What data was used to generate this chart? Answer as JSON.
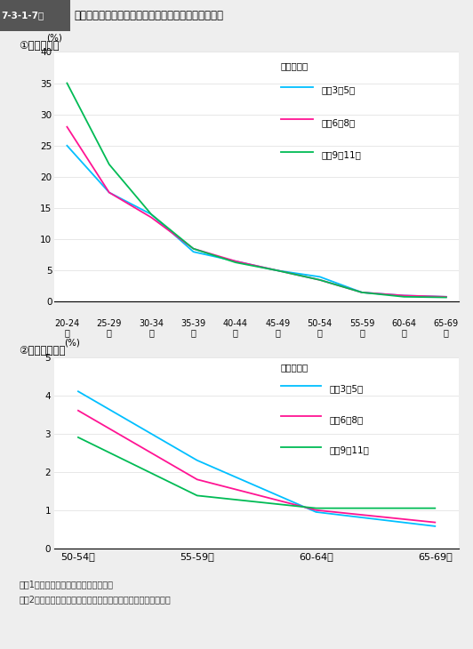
{
  "title_label": "7-3-1-7図",
  "title_text": "調査対象者の出生年別・１犯目の年齢層別人員の比率",
  "subtitle1": "①　全年齢層",
  "subtitle2": "②　５０歳以上",
  "legend_title": "（出生年）",
  "legend_labels": [
    "昭和3～5年",
    "昭和6～8年",
    "昭和9～11年"
  ],
  "colors": [
    "#00BFFF",
    "#FF1493",
    "#00BB55"
  ],
  "chart1": {
    "x_labels": [
      "20-24",
      "25-29",
      "30-34",
      "35-39",
      "40-44",
      "45-49",
      "50-54",
      "55-59",
      "60-64",
      "65-69"
    ],
    "x_labels2": [
      "歳",
      "歳",
      "歳",
      "歳",
      "歳",
      "歳",
      "歳",
      "歳",
      "歳",
      "歳"
    ],
    "x_positions": [
      0,
      1,
      2,
      3,
      4,
      5,
      6,
      7,
      8,
      9
    ],
    "ylim": [
      0,
      40
    ],
    "yticks": [
      0,
      5,
      10,
      15,
      20,
      25,
      30,
      35,
      40
    ],
    "ylabel": "(%)",
    "series": {
      "showa3_5": [
        25.0,
        17.5,
        14.0,
        8.0,
        6.5,
        5.0,
        4.0,
        1.5,
        1.0,
        0.8
      ],
      "showa6_8": [
        28.0,
        17.5,
        13.5,
        8.5,
        6.5,
        5.0,
        3.5,
        1.5,
        1.0,
        0.8
      ],
      "showa9_11": [
        35.0,
        22.0,
        14.0,
        8.5,
        6.3,
        5.0,
        3.5,
        1.5,
        0.8,
        0.7
      ]
    }
  },
  "chart2": {
    "x_labels": [
      "50-54歳",
      "55-59歳",
      "60-64歳",
      "65-69歳"
    ],
    "x_positions": [
      0,
      1,
      2,
      3
    ],
    "ylim": [
      0,
      5
    ],
    "yticks": [
      0,
      1,
      2,
      3,
      4,
      5
    ],
    "ylabel": "(%)",
    "series": {
      "showa3_5": [
        4.1,
        2.3,
        0.95,
        0.58
      ],
      "showa6_8": [
        3.6,
        1.8,
        1.0,
        0.68
      ],
      "showa9_11": [
        2.9,
        1.38,
        1.05,
        1.05
      ]
    }
  },
  "note1": "注　1　法務総合研究所の調査による。",
  "note2": "　　2　各年次に生まれた調査対象者総数に占める比率である。",
  "bg_color": "#eeeeee",
  "plot_bg": "#ffffff"
}
